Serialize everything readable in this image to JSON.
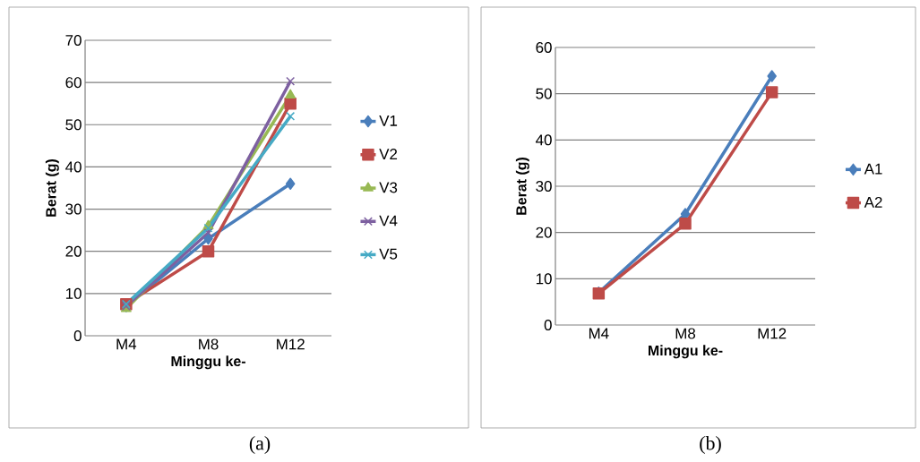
{
  "chart_data": [
    {
      "type": "line",
      "categories": [
        "M4",
        "M8",
        "M12"
      ],
      "xlabel": "Minggu ke-",
      "ylabel": "Berat (g)",
      "ylim": [
        0,
        70
      ],
      "yticks": [
        0,
        10,
        20,
        30,
        40,
        50,
        60,
        70
      ],
      "grid": "y",
      "legend": "right",
      "annotations": [
        "(a)"
      ],
      "series": [
        {
          "name": "V1",
          "color": "#4a7ebb",
          "marker": "diamond",
          "values": [
            7,
            23,
            36
          ]
        },
        {
          "name": "V2",
          "color": "#be4b48",
          "marker": "square",
          "values": [
            7.5,
            20,
            55
          ]
        },
        {
          "name": "V3",
          "color": "#98b954",
          "marker": "triangle",
          "values": [
            6.4,
            26,
            57
          ]
        },
        {
          "name": "V4",
          "color": "#7d60a0",
          "marker": "cross",
          "values": [
            7,
            24.4,
            60.3
          ]
        },
        {
          "name": "V5",
          "color": "#46aac5",
          "marker": "cross",
          "values": [
            7.5,
            25.5,
            52
          ]
        }
      ]
    },
    {
      "type": "line",
      "categories": [
        "M4",
        "M8",
        "M12"
      ],
      "xlabel": "Minggu ke-",
      "ylabel": "Berat (g)",
      "ylim": [
        0,
        60
      ],
      "yticks": [
        0,
        10,
        20,
        30,
        40,
        50,
        60
      ],
      "grid": "y",
      "legend": "right",
      "annotations": [
        "(b)"
      ],
      "series": [
        {
          "name": "A1",
          "color": "#4a7ebb",
          "marker": "diamond",
          "values": [
            7,
            24,
            53.8
          ]
        },
        {
          "name": "A2",
          "color": "#be4b48",
          "marker": "square",
          "values": [
            6.8,
            21.9,
            50.3
          ]
        }
      ]
    }
  ]
}
